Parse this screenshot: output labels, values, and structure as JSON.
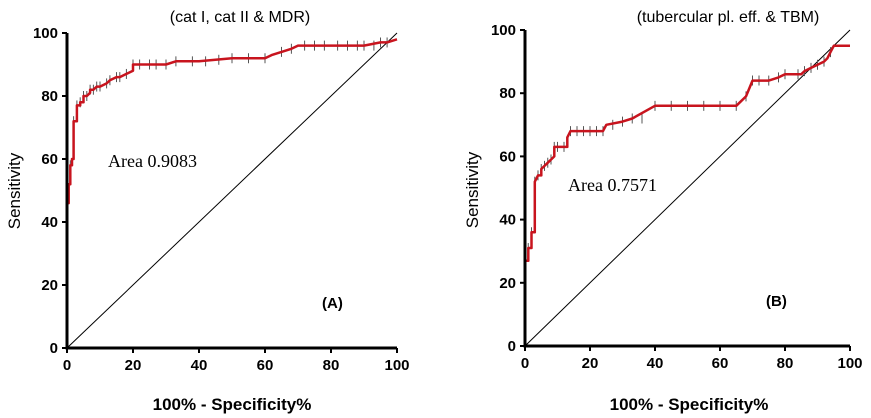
{
  "chart_data": [
    {
      "type": "line",
      "panel_label": "(A)",
      "title": "(cat I, cat II & MDR)",
      "xlabel": "100% - Specificity%",
      "ylabel": "Sensitivity",
      "xlim": [
        0,
        100
      ],
      "ylim": [
        0,
        100
      ],
      "xticks": [
        "0",
        "20",
        "40",
        "60",
        "80",
        "100"
      ],
      "yticks": [
        "0",
        "20",
        "40",
        "60",
        "80",
        "100"
      ],
      "area_text": "Area  0.9083",
      "reference_line": "diagonal",
      "series": [
        {
          "name": "ROC curve",
          "color": "#c8141e",
          "x": [
            0,
            0,
            0.5,
            0.5,
            1,
            1,
            1.5,
            1.5,
            2,
            2,
            3,
            3,
            4,
            4,
            5,
            5,
            6,
            7,
            7,
            8,
            9,
            10,
            12,
            13,
            15,
            16,
            18,
            20,
            20,
            25,
            30,
            33,
            40,
            45,
            50,
            55,
            60,
            62,
            65,
            68,
            70,
            75,
            80,
            85,
            90,
            95,
            97,
            100
          ],
          "y": [
            0,
            46,
            46,
            52,
            52,
            58,
            58,
            60,
            60,
            72,
            72,
            77,
            77,
            78,
            78,
            80,
            80,
            81,
            82,
            82,
            83,
            83,
            84,
            85,
            86,
            86,
            87,
            88,
            90,
            90,
            90,
            91,
            91,
            91.5,
            92,
            92,
            92,
            93,
            94,
            95,
            96,
            96,
            96,
            96,
            96,
            97,
            97,
            98
          ]
        }
      ],
      "censor_marks_x": [
        1,
        2,
        3,
        4,
        5,
        6,
        7,
        8,
        9,
        10,
        12,
        13,
        15,
        16,
        18,
        20,
        22,
        25,
        27,
        30,
        33,
        38,
        42,
        46,
        50,
        55,
        60,
        65,
        68,
        72,
        75,
        78,
        82,
        85,
        88,
        90,
        93,
        95,
        97
      ]
    },
    {
      "type": "line",
      "panel_label": "(B)",
      "title": "(tubercular pl. eff. & TBM)",
      "xlabel": "100% - Specificity%",
      "ylabel": "Sensitivity",
      "xlim": [
        0,
        100
      ],
      "ylim": [
        0,
        100
      ],
      "xticks": [
        "0",
        "20",
        "40",
        "60",
        "80",
        "100"
      ],
      "yticks": [
        "0",
        "20",
        "40",
        "60",
        "80",
        "100"
      ],
      "area_text": "Area  0.7571",
      "reference_line": "diagonal",
      "series": [
        {
          "name": "ROC curve",
          "color": "#c8141e",
          "x": [
            0,
            0,
            1,
            1,
            2,
            2,
            3,
            3,
            4,
            5,
            5,
            6,
            7,
            8,
            9,
            9,
            10,
            11,
            12,
            13,
            13,
            14,
            15,
            20,
            24,
            25,
            30,
            33,
            40,
            50,
            60,
            65,
            66,
            68,
            70,
            72,
            75,
            78,
            80,
            85,
            86,
            88,
            90,
            92,
            93,
            94,
            95,
            100
          ],
          "y": [
            0,
            27,
            27,
            31,
            31,
            36,
            36,
            52,
            54,
            54,
            56,
            57,
            58,
            59,
            60,
            63,
            63,
            63,
            63,
            63,
            66,
            68,
            68,
            68,
            68,
            70,
            71,
            72,
            76,
            76,
            76,
            76,
            77,
            79,
            84,
            84,
            84,
            85,
            86,
            86,
            87,
            88,
            89,
            90,
            91,
            93,
            95,
            95
          ]
        }
      ],
      "censor_marks_x": [
        1,
        2,
        3,
        4,
        5,
        6,
        7,
        8,
        9,
        10,
        12,
        14,
        16,
        18,
        20,
        22,
        24,
        27,
        30,
        33,
        36,
        40,
        45,
        50,
        55,
        60,
        65,
        68,
        70,
        72,
        75,
        78,
        80,
        84,
        86,
        88,
        90,
        92,
        94
      ]
    }
  ]
}
